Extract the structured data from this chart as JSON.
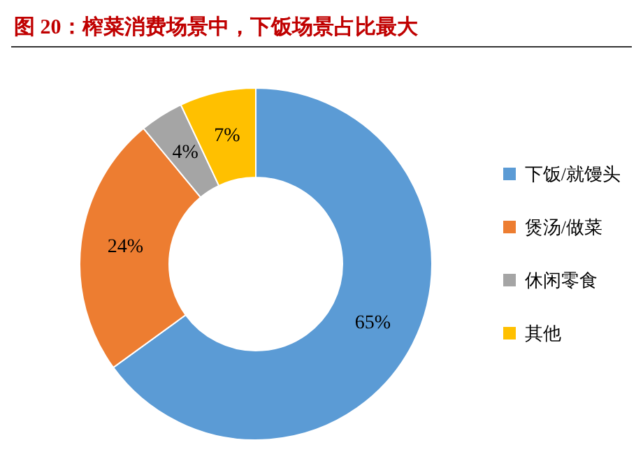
{
  "chart_data": {
    "type": "donut",
    "title": "图 20：榨菜消费场景中，下饭场景占比最大",
    "categories": [
      "下饭/就馒头",
      "煲汤/做菜",
      "休闲零食",
      "其他"
    ],
    "values": [
      65,
      24,
      4,
      7
    ],
    "value_labels": [
      "65%",
      "24%",
      "4%",
      "7%"
    ],
    "colors": [
      "#5b9bd5",
      "#ed7d31",
      "#a5a5a5",
      "#ffc000"
    ],
    "legend": "right"
  }
}
